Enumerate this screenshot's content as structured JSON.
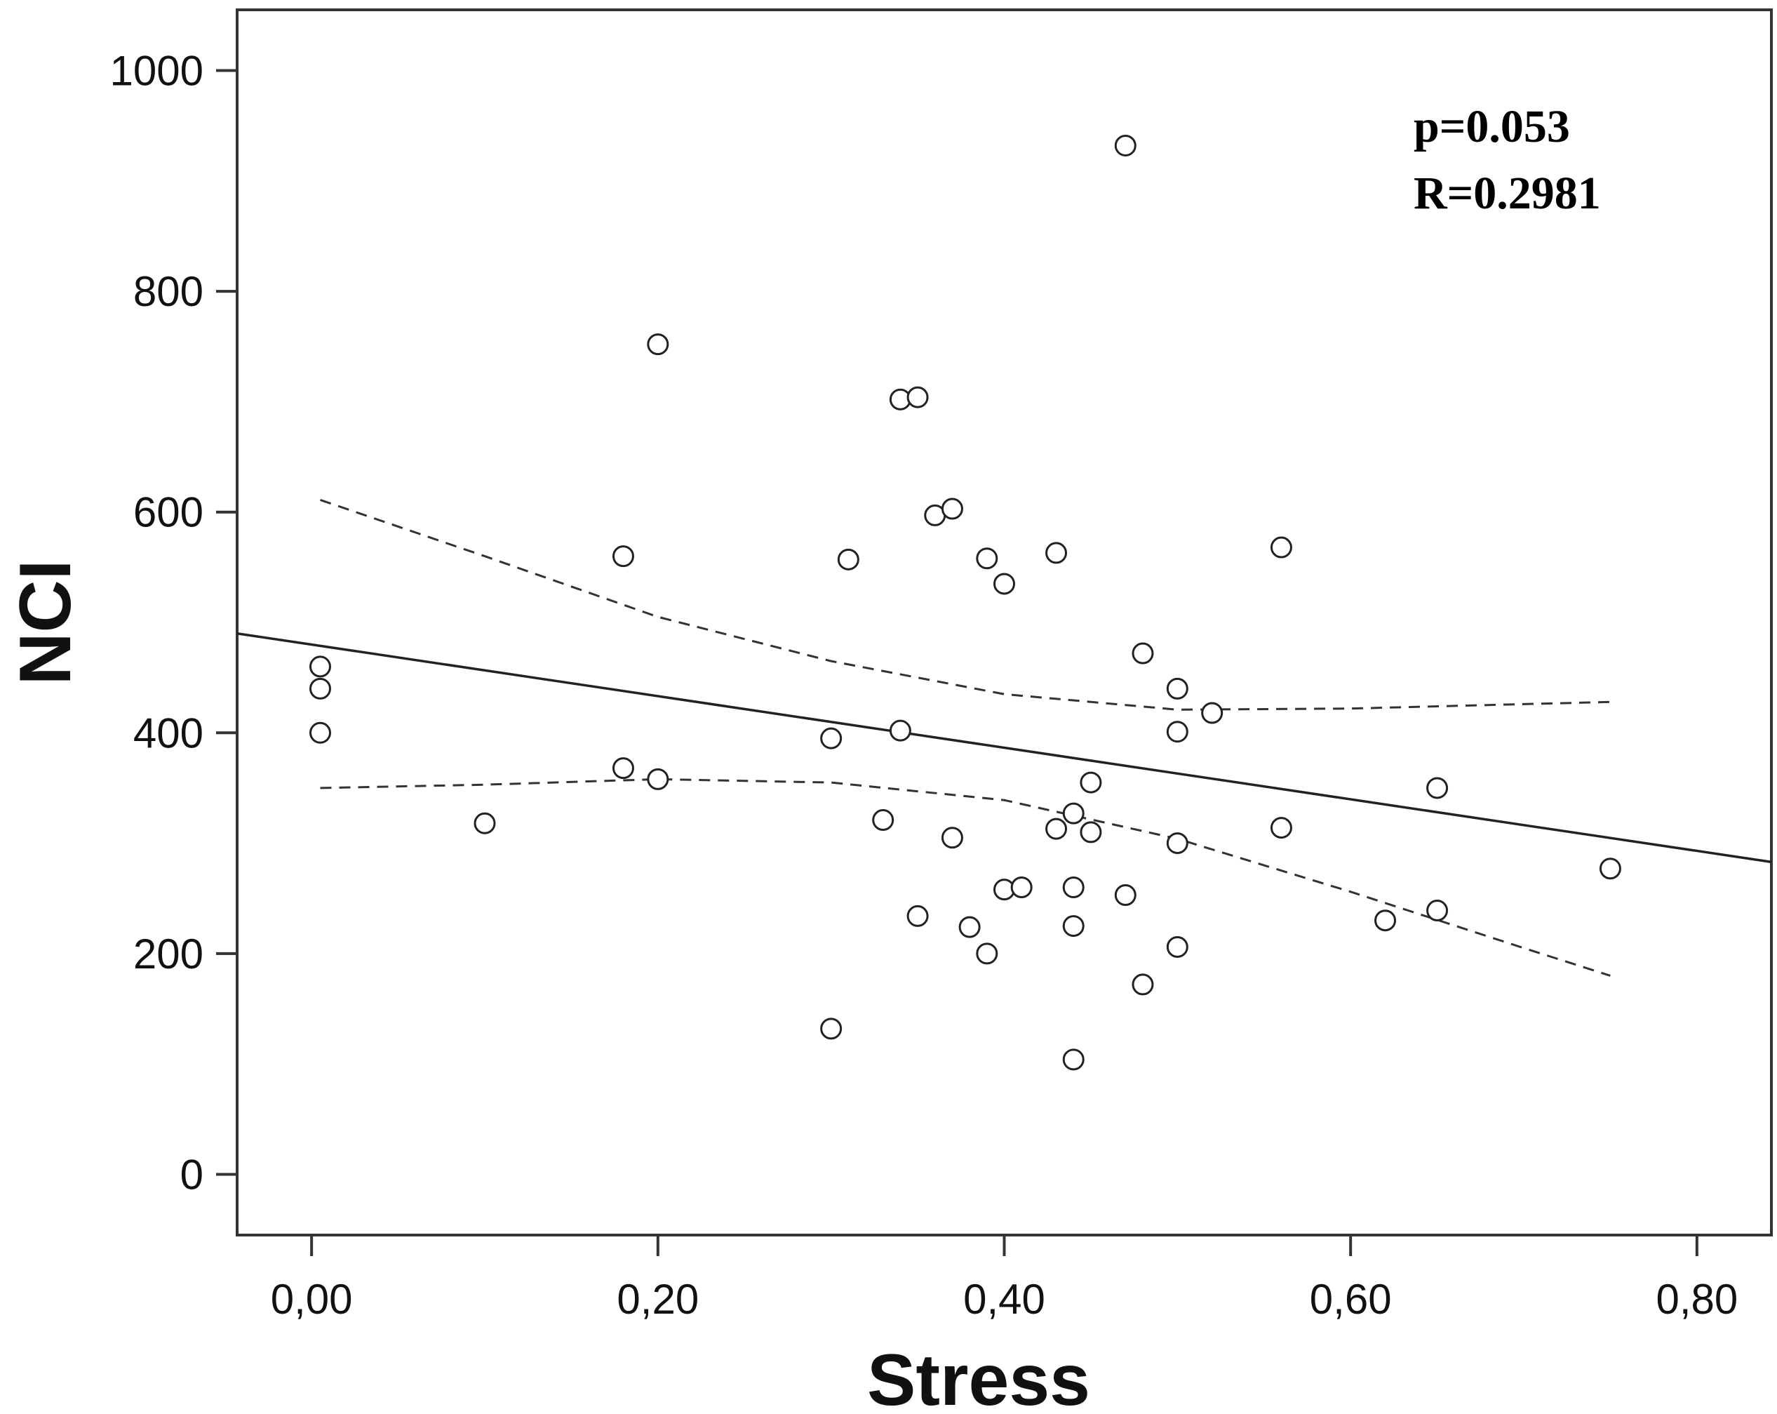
{
  "chart_data": {
    "type": "scatter",
    "title": "",
    "xlabel": "Stress",
    "ylabel": "NCI",
    "xlim": [
      -0.043,
      0.843
    ],
    "ylim": [
      -55,
      1055
    ],
    "grid": false,
    "x_ticks": [
      {
        "value": 0.0,
        "label": "0,00"
      },
      {
        "value": 0.2,
        "label": "0,20"
      },
      {
        "value": 0.4,
        "label": "0,40"
      },
      {
        "value": 0.6,
        "label": "0,60"
      },
      {
        "value": 0.8,
        "label": "0,80"
      }
    ],
    "y_ticks": [
      {
        "value": 0,
        "label": "0"
      },
      {
        "value": 200,
        "label": "200"
      },
      {
        "value": 400,
        "label": "400"
      },
      {
        "value": 600,
        "label": "600"
      },
      {
        "value": 800,
        "label": "800"
      },
      {
        "value": 1000,
        "label": "1000"
      }
    ],
    "annotations": [
      "p=0.053",
      "R=0.2981"
    ],
    "points": [
      {
        "x": 0.005,
        "y": 460
      },
      {
        "x": 0.005,
        "y": 440
      },
      {
        "x": 0.005,
        "y": 400
      },
      {
        "x": 0.1,
        "y": 318
      },
      {
        "x": 0.18,
        "y": 560
      },
      {
        "x": 0.18,
        "y": 368
      },
      {
        "x": 0.2,
        "y": 752
      },
      {
        "x": 0.2,
        "y": 358
      },
      {
        "x": 0.3,
        "y": 395
      },
      {
        "x": 0.3,
        "y": 132
      },
      {
        "x": 0.31,
        "y": 557
      },
      {
        "x": 0.33,
        "y": 321
      },
      {
        "x": 0.34,
        "y": 702
      },
      {
        "x": 0.34,
        "y": 402
      },
      {
        "x": 0.35,
        "y": 704
      },
      {
        "x": 0.35,
        "y": 234
      },
      {
        "x": 0.36,
        "y": 597
      },
      {
        "x": 0.37,
        "y": 603
      },
      {
        "x": 0.37,
        "y": 305
      },
      {
        "x": 0.38,
        "y": 224
      },
      {
        "x": 0.39,
        "y": 558
      },
      {
        "x": 0.39,
        "y": 200
      },
      {
        "x": 0.4,
        "y": 535
      },
      {
        "x": 0.4,
        "y": 258
      },
      {
        "x": 0.41,
        "y": 260
      },
      {
        "x": 0.43,
        "y": 563
      },
      {
        "x": 0.43,
        "y": 313
      },
      {
        "x": 0.44,
        "y": 327
      },
      {
        "x": 0.44,
        "y": 260
      },
      {
        "x": 0.44,
        "y": 225
      },
      {
        "x": 0.44,
        "y": 104
      },
      {
        "x": 0.45,
        "y": 355
      },
      {
        "x": 0.45,
        "y": 310
      },
      {
        "x": 0.47,
        "y": 932
      },
      {
        "x": 0.47,
        "y": 253
      },
      {
        "x": 0.48,
        "y": 472
      },
      {
        "x": 0.48,
        "y": 172
      },
      {
        "x": 0.5,
        "y": 440
      },
      {
        "x": 0.5,
        "y": 401
      },
      {
        "x": 0.5,
        "y": 300
      },
      {
        "x": 0.5,
        "y": 206
      },
      {
        "x": 0.52,
        "y": 418
      },
      {
        "x": 0.56,
        "y": 568
      },
      {
        "x": 0.56,
        "y": 314
      },
      {
        "x": 0.62,
        "y": 230
      },
      {
        "x": 0.65,
        "y": 350
      },
      {
        "x": 0.65,
        "y": 239
      },
      {
        "x": 0.75,
        "y": 277
      }
    ],
    "fit_line": {
      "x": [
        -0.043,
        0.843
      ],
      "y": [
        490,
        283
      ]
    },
    "confidence_band": {
      "upper": [
        [
          0.005,
          611
        ],
        [
          0.1,
          560
        ],
        [
          0.2,
          505
        ],
        [
          0.3,
          465
        ],
        [
          0.4,
          435
        ],
        [
          0.5,
          421
        ],
        [
          0.6,
          422
        ],
        [
          0.7,
          426
        ],
        [
          0.75,
          428
        ]
      ],
      "lower": [
        [
          0.005,
          350
        ],
        [
          0.1,
          353
        ],
        [
          0.2,
          358
        ],
        [
          0.3,
          355
        ],
        [
          0.4,
          339
        ],
        [
          0.5,
          304
        ],
        [
          0.6,
          256
        ],
        [
          0.7,
          205
        ],
        [
          0.75,
          180
        ]
      ]
    }
  }
}
